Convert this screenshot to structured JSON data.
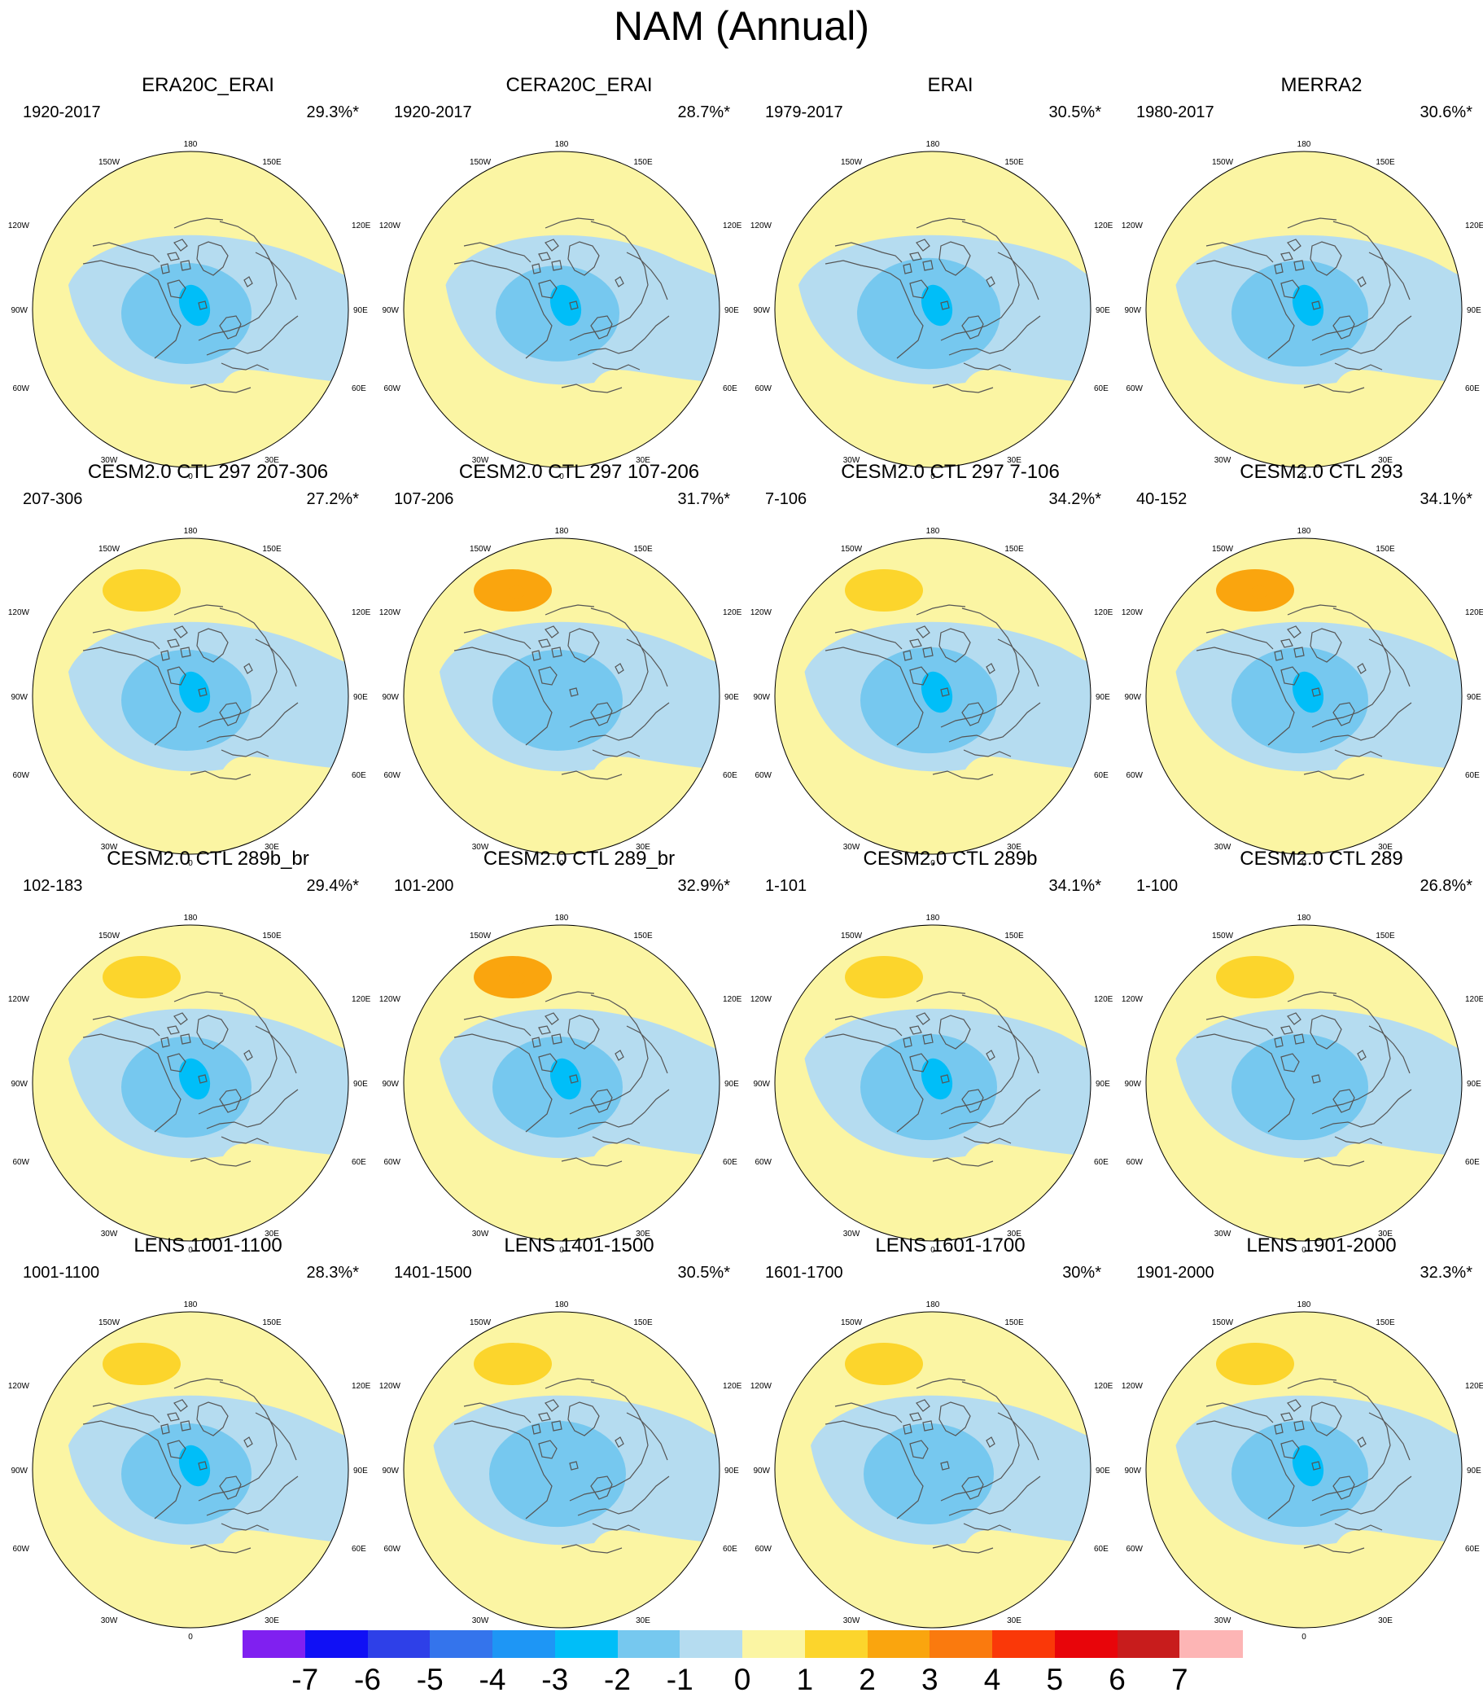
{
  "title": "NAM (Annual)",
  "colors": {
    "neg7": "#8020f0",
    "neg6": "#1010f5",
    "neg5": "#2e40e8",
    "neg4": "#3474ec",
    "neg3": "#1e96f5",
    "neg2": "#00bef8",
    "neg1": "#76c8ef",
    "neg0": "#b5dcf0",
    "pos0": "#fbf5a3",
    "pos1": "#fcd52c",
    "pos2": "#faa50e",
    "pos3": "#fa7a0e",
    "pos4": "#fa3808",
    "pos5": "#e8050a",
    "pos6": "#c81c1c",
    "pos7": "#fdb5b5",
    "coast": "#555555"
  },
  "longitude_labels": [
    "180",
    "150W",
    "150E",
    "120W",
    "120E",
    "90W",
    "90E",
    "60W",
    "60E",
    "30W",
    "30E",
    "0"
  ],
  "panels": [
    {
      "title": "ERA20C_ERAI",
      "years": "1920-2017",
      "pct": "29.3%*",
      "center": "-2",
      "core": "-3",
      "ridge": "none",
      "spread": 1.0
    },
    {
      "title": "CERA20C_ERAI",
      "years": "1920-2017",
      "pct": "28.7%*",
      "center": "-2",
      "core": "-3",
      "ridge": "none",
      "spread": 0.95
    },
    {
      "title": "ERAI",
      "years": "1979-2017",
      "pct": "30.5%*",
      "center": "-2",
      "core": "-3",
      "ridge": "none",
      "spread": 1.1
    },
    {
      "title": "MERRA2",
      "years": "1980-2017",
      "pct": "30.6%*",
      "center": "-2",
      "core": "-3",
      "ridge": "none",
      "spread": 1.05
    },
    {
      "title": "CESM2.0 CTL 297 207-306",
      "years": "207-306",
      "pct": "27.2%*",
      "center": "-2",
      "core": "-3",
      "ridge": "1",
      "spread": 1.0
    },
    {
      "title": "CESM2.0 CTL 297 107-206",
      "years": "107-206",
      "pct": "31.7%*",
      "center": "-2",
      "core": "none",
      "ridge": "2",
      "spread": 1.0
    },
    {
      "title": "CESM2.0 CTL 297 7-106",
      "years": "7-106",
      "pct": "34.2%*",
      "center": "-2",
      "core": "-3",
      "ridge": "1",
      "spread": 1.05
    },
    {
      "title": "CESM2.0 CTL 293",
      "years": "40-152",
      "pct": "34.1%*",
      "center": "-2",
      "core": "-3",
      "ridge": "2",
      "spread": 1.05
    },
    {
      "title": "CESM2.0 CTL 289b_br",
      "years": "102-183",
      "pct": "29.4%*",
      "center": "-2",
      "core": "-3",
      "ridge": "1",
      "spread": 1.0
    },
    {
      "title": "CESM2.0 CTL 289_br",
      "years": "101-200",
      "pct": "32.9%*",
      "center": "-2",
      "core": "-3",
      "ridge": "2",
      "spread": 1.0
    },
    {
      "title": "CESM2.0 CTL 289b",
      "years": "1-101",
      "pct": "34.1%*",
      "center": "-2",
      "core": "-3",
      "ridge": "1",
      "spread": 1.05
    },
    {
      "title": "CESM2.0 CTL 289",
      "years": "1-100",
      "pct": "26.8%*",
      "center": "-2",
      "core": "none",
      "ridge": "1",
      "spread": 1.05
    },
    {
      "title": "LENS 1001-1100",
      "years": "1001-1100",
      "pct": "28.3%*",
      "center": "-2",
      "core": "-3",
      "ridge": "1",
      "spread": 1.0
    },
    {
      "title": "LENS 1401-1500",
      "years": "1401-1500",
      "pct": "30.5%*",
      "center": "-2",
      "core": "none",
      "ridge": "1",
      "spread": 1.05
    },
    {
      "title": "LENS 1601-1700",
      "years": "1601-1700",
      "pct": "30%*",
      "center": "-2",
      "core": "none",
      "ridge": "1",
      "spread": 1.0
    },
    {
      "title": "LENS 1901-2000",
      "years": "1901-2000",
      "pct": "32.3%*",
      "center": "-2",
      "core": "-3",
      "ridge": "1",
      "spread": 1.05
    }
  ],
  "colorbar": {
    "labels": [
      "-7",
      "-6",
      "-5",
      "-4",
      "-3",
      "-2",
      "-1",
      "0",
      "1",
      "2",
      "3",
      "4",
      "5",
      "6",
      "7"
    ],
    "bins": [
      "neg7",
      "neg6",
      "neg5",
      "neg4",
      "neg3",
      "neg2",
      "neg1",
      "neg0",
      "pos0",
      "pos1",
      "pos2",
      "pos3",
      "pos4",
      "pos5",
      "pos6",
      "pos7"
    ]
  }
}
